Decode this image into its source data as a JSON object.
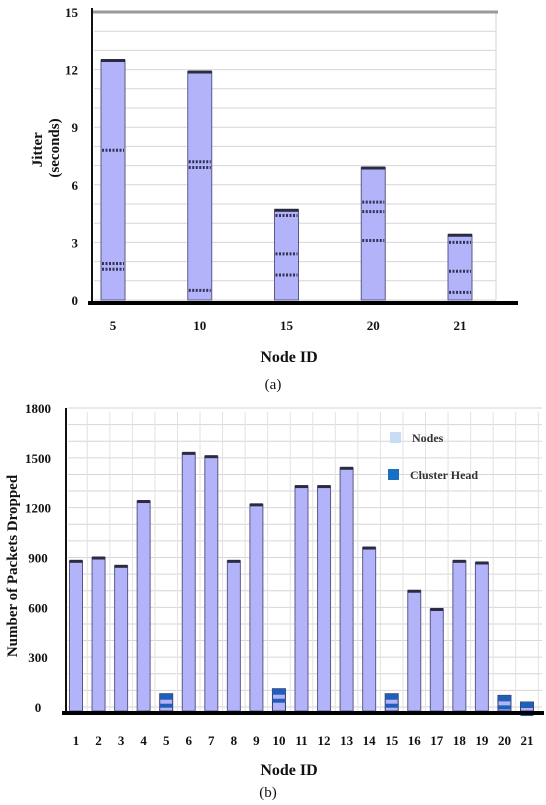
{
  "chart_data": [
    {
      "type": "bar",
      "ylabel": "Jitter\n(seconds)",
      "xlabel": "Node ID",
      "caption": "(a)",
      "categories": [
        "5",
        "10",
        "15",
        "20",
        "21"
      ],
      "values": [
        12.5,
        11.9,
        4.7,
        6.9,
        3.4
      ],
      "dashed_marks": [
        [
          7.8,
          1.9,
          1.6
        ],
        [
          7.2,
          6.9,
          0.5
        ],
        [
          4.4,
          2.4,
          1.3
        ],
        [
          5.1,
          4.6,
          3.1
        ],
        [
          3.0,
          1.5,
          0.4
        ]
      ],
      "ylim": [
        0,
        15
      ],
      "yticks": [
        0,
        3,
        6,
        9,
        12,
        15
      ],
      "grid": true,
      "colors": {
        "bar": "#b3b3fa",
        "bar_edge": "#5a5a8a",
        "marks": "#333355"
      }
    },
    {
      "type": "bar",
      "ylabel": "Number of Packets Dropped",
      "xlabel": "Node ID",
      "caption": "(b)",
      "categories": [
        "1",
        "2",
        "3",
        "4",
        "5",
        "6",
        "7",
        "8",
        "9",
        "10",
        "11",
        "12",
        "13",
        "14",
        "15",
        "16",
        "17",
        "18",
        "19",
        "20",
        "21"
      ],
      "series": [
        {
          "name": "Nodes",
          "values": [
            880,
            900,
            850,
            1240,
            0,
            1530,
            1510,
            880,
            1220,
            0,
            1330,
            1330,
            1440,
            960,
            0,
            700,
            590,
            880,
            870,
            0,
            0
          ]
        },
        {
          "name": "Cluster Head",
          "values": [
            0,
            0,
            0,
            0,
            80,
            0,
            0,
            0,
            0,
            110,
            0,
            0,
            0,
            0,
            80,
            0,
            0,
            0,
            0,
            70,
            30
          ]
        }
      ],
      "ylim": [
        0,
        1800
      ],
      "yticks": [
        0,
        300,
        600,
        900,
        1200,
        1500,
        1800
      ],
      "grid": true,
      "legend": "top-right",
      "colors": {
        "nodes": "#b3b3fa",
        "cluster_head": "#1f5fb8",
        "nodes_legend": "#c8dcf4",
        "cluster_legend": "#1a6fc2"
      }
    }
  ]
}
